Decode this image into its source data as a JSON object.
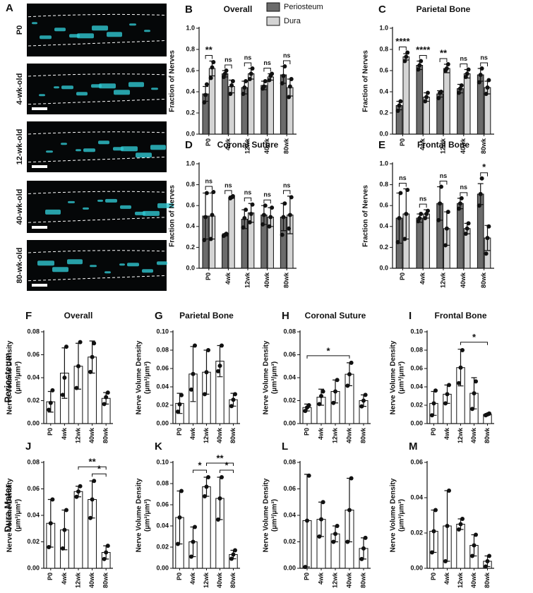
{
  "panel_a": {
    "label": "A",
    "strips": [
      "P0",
      "4-wk-old",
      "12-wk-old",
      "40-wk-old",
      "80-wk-old"
    ]
  },
  "row_labels": [
    "Periosteum",
    "Dura Mater"
  ],
  "chart_data": [
    {
      "type": "bar",
      "label": "B",
      "title": "Overall",
      "ylabel": [
        "Fraction of Nerves"
      ],
      "legend": true,
      "categories": [
        "P0",
        "4wk",
        "12wk",
        "40wk",
        "80wk"
      ],
      "ylim": [
        0,
        1
      ],
      "yticks": [
        {
          "value": 0,
          "label": "0.0"
        },
        0.2,
        0.4,
        0.6,
        0.8,
        {
          "value": 1,
          "label": "1.0"
        }
      ],
      "significance": [
        "**",
        "ns",
        "ns",
        "ns",
        "ns"
      ],
      "series": [
        {
          "name": "Periosteum",
          "color": "#6b6b6b",
          "values": [
            0.38,
            0.57,
            0.44,
            0.46,
            0.56
          ],
          "errors": [
            0.07,
            0.03,
            0.06,
            0.04,
            0.08
          ],
          "points": [
            [
              0.3,
              0.37,
              0.47
            ],
            [
              0.54,
              0.57,
              0.6
            ],
            [
              0.38,
              0.44,
              0.5
            ],
            [
              0.43,
              0.45,
              0.5
            ],
            [
              0.48,
              0.55,
              0.64
            ]
          ]
        },
        {
          "name": "Dura",
          "color": "#d4d4d4",
          "values": [
            0.62,
            0.45,
            0.57,
            0.54,
            0.44
          ],
          "errors": [
            0.07,
            0.06,
            0.05,
            0.03,
            0.08
          ],
          "points": [
            [
              0.53,
              0.63,
              0.68
            ],
            [
              0.38,
              0.46,
              0.5
            ],
            [
              0.52,
              0.57,
              0.62
            ],
            [
              0.51,
              0.55,
              0.57
            ],
            [
              0.35,
              0.45,
              0.52
            ]
          ]
        }
      ]
    },
    {
      "type": "bar",
      "label": "C",
      "title": "Parietal Bone",
      "ylabel": [
        "Fraction of Nerves"
      ],
      "categories": [
        "P0",
        "4wk",
        "12wk",
        "40wk",
        "80wk"
      ],
      "ylim": [
        0,
        1
      ],
      "yticks": [
        {
          "value": 0,
          "label": "0.0"
        },
        0.2,
        0.4,
        0.6,
        0.8,
        {
          "value": 1,
          "label": "1.0"
        }
      ],
      "significance": [
        "****",
        "****",
        "**",
        "ns",
        "ns"
      ],
      "series": [
        {
          "name": "Periosteum",
          "color": "#6b6b6b",
          "values": [
            0.27,
            0.65,
            0.38,
            0.43,
            0.56
          ],
          "errors": [
            0.04,
            0.04,
            0.03,
            0.04,
            0.06
          ],
          "points": [
            [
              0.22,
              0.27,
              0.31
            ],
            [
              0.61,
              0.65,
              0.69
            ],
            [
              0.34,
              0.39,
              0.4
            ],
            [
              0.39,
              0.43,
              0.46
            ],
            [
              0.49,
              0.56,
              0.62
            ]
          ]
        },
        {
          "name": "Dura",
          "color": "#d4d4d4",
          "values": [
            0.73,
            0.35,
            0.62,
            0.57,
            0.44
          ],
          "errors": [
            0.03,
            0.04,
            0.04,
            0.04,
            0.06
          ],
          "points": [
            [
              0.69,
              0.73,
              0.77
            ],
            [
              0.31,
              0.35,
              0.39
            ],
            [
              0.6,
              0.62,
              0.66
            ],
            [
              0.54,
              0.57,
              0.61
            ],
            [
              0.38,
              0.44,
              0.51
            ]
          ]
        }
      ]
    },
    {
      "type": "bar",
      "label": "D",
      "title": "Coronal Suture",
      "ylabel": [
        "Fraction of Nerves"
      ],
      "categories": [
        "P0",
        "4wk",
        "12wk",
        "40wk",
        "80wk"
      ],
      "ylim": [
        0,
        1
      ],
      "yticks": [
        {
          "value": 0,
          "label": "0.0"
        },
        0.2,
        0.4,
        0.6,
        0.8,
        {
          "value": 1,
          "label": "1.0"
        }
      ],
      "significance": [
        "ns",
        "ns",
        "ns",
        "ns",
        "ns"
      ],
      "series": [
        {
          "name": "Periosteum",
          "color": "#6b6b6b",
          "values": [
            0.5,
            0.32,
            0.47,
            0.51,
            0.49
          ],
          "errors": [
            0.22,
            0.01,
            0.09,
            0.09,
            0.13
          ],
          "points": [
            [
              0.27,
              0.49,
              0.72
            ],
            [
              0.31,
              0.32,
              0.33
            ],
            [
              0.39,
              0.48,
              0.56
            ],
            [
              0.42,
              0.51,
              0.6
            ],
            [
              0.32,
              0.49,
              0.62
            ]
          ]
        },
        {
          "name": "Dura",
          "color": "#d4d4d4",
          "values": [
            0.5,
            0.68,
            0.53,
            0.49,
            0.51
          ],
          "errors": [
            0.22,
            0.01,
            0.09,
            0.09,
            0.18
          ],
          "points": [
            [
              0.28,
              0.51,
              0.73
            ],
            [
              0.67,
              0.68,
              0.69
            ],
            [
              0.44,
              0.52,
              0.61
            ],
            [
              0.4,
              0.49,
              0.58
            ],
            [
              0.38,
              0.51,
              0.68
            ]
          ]
        }
      ]
    },
    {
      "type": "bar",
      "label": "E",
      "title": "Frontal Bone",
      "ylabel": [
        "Fraction of Nerves"
      ],
      "categories": [
        "P0",
        "4wk",
        "12wk",
        "40wk",
        "80wk"
      ],
      "ylim": [
        0,
        1
      ],
      "yticks": [
        {
          "value": 0,
          "label": "0.0"
        },
        0.2,
        0.4,
        0.6,
        0.8,
        {
          "value": 1,
          "label": "1.0"
        }
      ],
      "significance": [
        "ns",
        "ns",
        "ns",
        "ns",
        "*"
      ],
      "series": [
        {
          "name": "Periosteum",
          "color": "#6b6b6b",
          "values": [
            0.48,
            0.48,
            0.62,
            0.62,
            0.71
          ],
          "errors": [
            0.24,
            0.04,
            0.16,
            0.05,
            0.1
          ],
          "points": [
            [
              0.25,
              0.48,
              0.72
            ],
            [
              0.45,
              0.48,
              0.52
            ],
            [
              0.46,
              0.62,
              0.78
            ],
            [
              0.57,
              0.62,
              0.67
            ],
            [
              0.6,
              0.71,
              0.86
            ]
          ]
        },
        {
          "name": "Dura",
          "color": "#d4d4d4",
          "values": [
            0.52,
            0.52,
            0.38,
            0.38,
            0.29
          ],
          "errors": [
            0.24,
            0.04,
            0.16,
            0.05,
            0.12
          ],
          "points": [
            [
              0.28,
              0.52,
              0.75
            ],
            [
              0.48,
              0.52,
              0.55
            ],
            [
              0.22,
              0.38,
              0.54
            ],
            [
              0.33,
              0.38,
              0.43
            ],
            [
              0.14,
              0.29,
              0.4
            ]
          ]
        }
      ]
    },
    {
      "type": "bar",
      "label": "F",
      "title": "Overall",
      "ylabel": [
        "Nerve Volume Density",
        "(μm³/μm³)"
      ],
      "color": "#ffffff",
      "categories": [
        "P0",
        "4wk",
        "12wk",
        "40wk",
        "80wk"
      ],
      "ylim": [
        0,
        0.08
      ],
      "yticks": [
        {
          "value": 0,
          "label": "0.00"
        },
        0.02,
        0.04,
        0.06,
        0.08
      ],
      "values": [
        0.019,
        0.044,
        0.05,
        0.058,
        0.022
      ],
      "errors": [
        0.009,
        0.022,
        0.02,
        0.014,
        0.005
      ],
      "points": [
        [
          0.012,
          0.018,
          0.029
        ],
        [
          0.025,
          0.04,
          0.067
        ],
        [
          0.031,
          0.05,
          0.071
        ],
        [
          0.045,
          0.058,
          0.07
        ],
        [
          0.017,
          0.023,
          0.027
        ]
      ],
      "brackets": []
    },
    {
      "type": "bar",
      "label": "G",
      "title": "Parietal Bone",
      "ylabel": [
        "Nerve Volume Density",
        "(μm³/μm³)"
      ],
      "color": "#ffffff",
      "categories": [
        "P0",
        "4wk",
        "12wk",
        "40wk",
        "80wk"
      ],
      "ylim": [
        0,
        0.1
      ],
      "yticks": [
        {
          "value": 0,
          "label": "0.00"
        },
        0.02,
        0.04,
        0.06,
        0.08,
        {
          "value": 0.1,
          "label": "0.10"
        }
      ],
      "values": [
        0.022,
        0.054,
        0.056,
        0.068,
        0.026
      ],
      "errors": [
        0.011,
        0.03,
        0.024,
        0.017,
        0.007
      ],
      "points": [
        [
          0.013,
          0.021,
          0.031
        ],
        [
          0.037,
          0.054,
          0.085
        ],
        [
          0.032,
          0.056,
          0.08
        ],
        [
          0.057,
          0.063,
          0.085
        ],
        [
          0.019,
          0.026,
          0.032
        ]
      ],
      "brackets": []
    },
    {
      "type": "bar",
      "label": "H",
      "title": "Coronal Suture",
      "ylabel": [
        "Nerve Volume Density",
        "(μm³/μm³)"
      ],
      "color": "#ffffff",
      "categories": [
        "P0",
        "4wk",
        "12wk",
        "40wk",
        "80wk"
      ],
      "ylim": [
        0,
        0.08
      ],
      "yticks": [
        {
          "value": 0,
          "label": "0.00"
        },
        0.02,
        0.04,
        0.06,
        0.08
      ],
      "values": [
        0.014,
        0.023,
        0.028,
        0.043,
        0.02
      ],
      "errors": [
        0.003,
        0.007,
        0.01,
        0.01,
        0.005
      ],
      "points": [
        [
          0.011,
          0.014,
          0.016
        ],
        [
          0.017,
          0.024,
          0.028
        ],
        [
          0.018,
          0.028,
          0.038
        ],
        [
          0.033,
          0.043,
          0.053
        ],
        [
          0.015,
          0.02,
          0.025
        ]
      ],
      "brackets": [
        {
          "text": "*",
          "between": [
            "P0",
            "40wk"
          ]
        }
      ]
    },
    {
      "type": "bar",
      "label": "I",
      "title": "Frontal Bone",
      "ylabel": [
        "Nerve Volume Density",
        "(μm³/μm³)"
      ],
      "color": "#ffffff",
      "categories": [
        "P0",
        "4wk",
        "12wk",
        "40wk",
        "80wk"
      ],
      "ylim": [
        0,
        0.1
      ],
      "yticks": [
        {
          "value": 0,
          "label": "0.00"
        },
        0.02,
        0.04,
        0.06,
        0.08,
        {
          "value": 0.1,
          "label": "0.10"
        }
      ],
      "values": [
        0.022,
        0.032,
        0.061,
        0.033,
        0.01
      ],
      "errors": [
        0.013,
        0.01,
        0.02,
        0.017,
        0.001
      ],
      "points": [
        [
          0.009,
          0.022,
          0.036
        ],
        [
          0.022,
          0.032,
          0.042
        ],
        [
          0.044,
          0.061,
          0.08
        ],
        [
          0.016,
          0.033,
          0.046
        ],
        [
          0.009,
          0.01,
          0.011
        ]
      ],
      "brackets": [
        {
          "text": "*",
          "between": [
            "12wk",
            "80wk"
          ]
        }
      ]
    },
    {
      "type": "bar",
      "label": "J",
      "ylabel": [
        "Nerve Volume Density",
        "(μm³/μm³)"
      ],
      "color": "#ffffff",
      "categories": [
        "P0",
        "4wk",
        "12wk",
        "40wk",
        "80wk"
      ],
      "ylim": [
        0,
        0.08
      ],
      "yticks": [
        {
          "value": 0,
          "label": "0.00"
        },
        0.02,
        0.04,
        0.06,
        0.08
      ],
      "values": [
        0.034,
        0.029,
        0.058,
        0.052,
        0.012
      ],
      "errors": [
        0.018,
        0.015,
        0.004,
        0.014,
        0.005
      ],
      "points": [
        [
          0.016,
          0.034,
          0.052
        ],
        [
          0.015,
          0.029,
          0.044
        ],
        [
          0.054,
          0.058,
          0.062
        ],
        [
          0.038,
          0.052,
          0.066
        ],
        [
          0.007,
          0.012,
          0.017
        ]
      ],
      "brackets": [
        {
          "text": "*",
          "between": [
            "40wk",
            "80wk"
          ]
        },
        {
          "text": "**",
          "between": [
            "12wk",
            "80wk"
          ]
        }
      ]
    },
    {
      "type": "bar",
      "label": "K",
      "ylabel": [
        "Nerve Volume Density",
        "(μm³/μm³)"
      ],
      "color": "#ffffff",
      "categories": [
        "P0",
        "4wk",
        "12wk",
        "40wk",
        "80wk"
      ],
      "ylim": [
        0,
        0.1
      ],
      "yticks": [
        {
          "value": 0,
          "label": "0.00"
        },
        0.02,
        0.04,
        0.06,
        0.08,
        {
          "value": 0.1,
          "label": "0.10"
        }
      ],
      "values": [
        0.048,
        0.025,
        0.077,
        0.066,
        0.013
      ],
      "errors": [
        0.025,
        0.014,
        0.009,
        0.02,
        0.004
      ],
      "points": [
        [
          0.023,
          0.048,
          0.073
        ],
        [
          0.011,
          0.025,
          0.039
        ],
        [
          0.068,
          0.077,
          0.086
        ],
        [
          0.046,
          0.066,
          0.086
        ],
        [
          0.009,
          0.013,
          0.017
        ]
      ],
      "brackets": [
        {
          "text": "*",
          "between": [
            "4wk",
            "12wk"
          ]
        },
        {
          "text": "*",
          "between": [
            "40wk",
            "80wk"
          ]
        },
        {
          "text": "**",
          "between": [
            "12wk",
            "80wk"
          ]
        }
      ]
    },
    {
      "type": "bar",
      "label": "L",
      "ylabel": [
        "Nerve Volume Density",
        "(μm³/μm³)"
      ],
      "color": "#ffffff",
      "categories": [
        "P0",
        "4wk",
        "12wk",
        "40wk",
        "80wk"
      ],
      "ylim": [
        0,
        0.08
      ],
      "yticks": [
        {
          "value": 0,
          "label": "0.00"
        },
        0.02,
        0.04,
        0.06,
        0.08
      ],
      "values": [
        0.036,
        0.037,
        0.026,
        0.044,
        0.015
      ],
      "errors": [
        0.035,
        0.013,
        0.006,
        0.024,
        0.008
      ],
      "points": [
        [
          0.001,
          0.036,
          0.07
        ],
        [
          0.024,
          0.037,
          0.05
        ],
        [
          0.02,
          0.026,
          0.032
        ],
        [
          0.02,
          0.044,
          0.068
        ],
        [
          0.007,
          0.015,
          0.023
        ]
      ],
      "brackets": []
    },
    {
      "type": "bar",
      "label": "M",
      "ylabel": [
        "Nerve Volume Density",
        "(μm³/μm³)"
      ],
      "color": "#ffffff",
      "categories": [
        "P0",
        "4wk",
        "12wk",
        "40wk",
        "80wk"
      ],
      "ylim": [
        0,
        0.06
      ],
      "yticks": [
        {
          "value": 0,
          "label": "0.00"
        },
        0.02,
        0.04,
        0.06
      ],
      "values": [
        0.021,
        0.024,
        0.025,
        0.013,
        0.004
      ],
      "errors": [
        0.012,
        0.02,
        0.003,
        0.006,
        0.003
      ],
      "points": [
        [
          0.009,
          0.021,
          0.033
        ],
        [
          0.004,
          0.024,
          0.044
        ],
        [
          0.022,
          0.025,
          0.028
        ],
        [
          0.007,
          0.013,
          0.019
        ],
        [
          0.001,
          0.004,
          0.007
        ]
      ],
      "brackets": []
    }
  ]
}
